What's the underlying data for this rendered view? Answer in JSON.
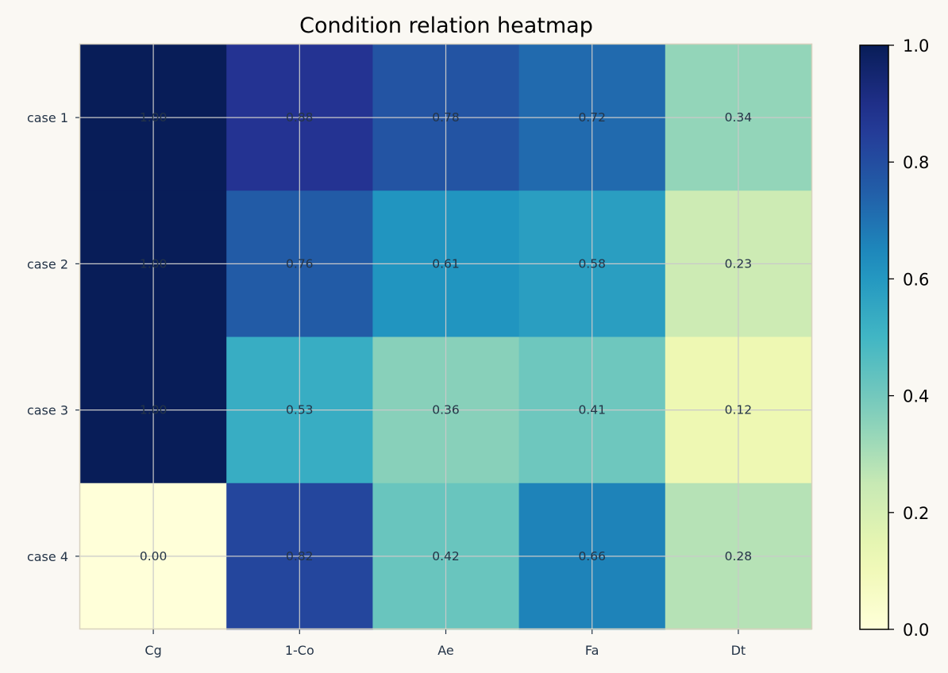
{
  "chart_data": {
    "type": "heatmap",
    "title": "Condition relation heatmap",
    "columns": [
      "Cg",
      "1-Co",
      "Ae",
      "Fa",
      "Dt"
    ],
    "rows": [
      "case 1",
      "case 2",
      "case 3",
      "case 4"
    ],
    "values": [
      [
        1.0,
        0.88,
        0.78,
        0.72,
        0.34
      ],
      [
        1.0,
        0.76,
        0.61,
        0.58,
        0.23
      ],
      [
        1.0,
        0.53,
        0.36,
        0.41,
        0.12
      ],
      [
        0.0,
        0.82,
        0.42,
        0.66,
        0.28
      ]
    ],
    "colormap": "YlGnBu",
    "vmin": 0.0,
    "vmax": 1.0,
    "colorbar_ticks": [
      "0.0",
      "0.2",
      "0.4",
      "0.6",
      "0.8",
      "1.0"
    ],
    "grid": true
  }
}
